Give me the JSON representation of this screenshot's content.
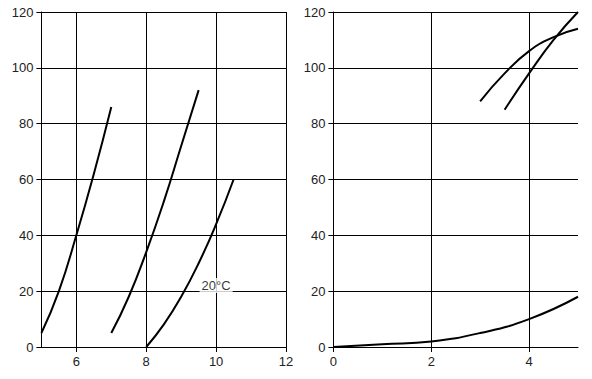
{
  "chart_data": [
    {
      "type": "line",
      "grid": true,
      "color": "#000000",
      "xlim": [
        5,
        12
      ],
      "xticks": [
        6,
        8,
        10,
        12
      ],
      "ylim": [
        0,
        120
      ],
      "yticks": [
        0,
        20,
        40,
        60,
        80,
        100,
        120
      ],
      "series": [
        {
          "x": [
            5,
            5.5,
            6,
            6.5,
            7
          ],
          "values": [
            5,
            20,
            40,
            62,
            86
          ]
        },
        {
          "x": [
            7,
            7.5,
            8,
            8.5,
            9,
            9.5
          ],
          "values": [
            5,
            18,
            34,
            52,
            72,
            92
          ]
        },
        {
          "x": [
            8,
            8.5,
            9,
            9.5,
            10,
            10.5
          ],
          "values": [
            0,
            8,
            18,
            30,
            44,
            60
          ]
        }
      ],
      "annotations": [
        {
          "text": "20°C",
          "x": 10,
          "y": 22
        }
      ]
    },
    {
      "type": "line",
      "grid": true,
      "color": "#000000",
      "xlim": [
        0,
        5
      ],
      "xticks": [
        0,
        2,
        4
      ],
      "ylim": [
        0,
        120
      ],
      "yticks": [
        0,
        20,
        40,
        60,
        80,
        100,
        120
      ],
      "series": [
        {
          "x": [
            0,
            1,
            2,
            3,
            4,
            5
          ],
          "values": [
            0,
            1,
            2,
            5,
            10,
            18
          ]
        },
        {
          "x": [
            3,
            3.5,
            4,
            4.5,
            5
          ],
          "values": [
            88,
            98,
            106,
            111,
            114
          ]
        },
        {
          "x": [
            3.5,
            4,
            4.5,
            5
          ],
          "values": [
            85,
            98,
            110,
            120
          ]
        }
      ]
    }
  ]
}
